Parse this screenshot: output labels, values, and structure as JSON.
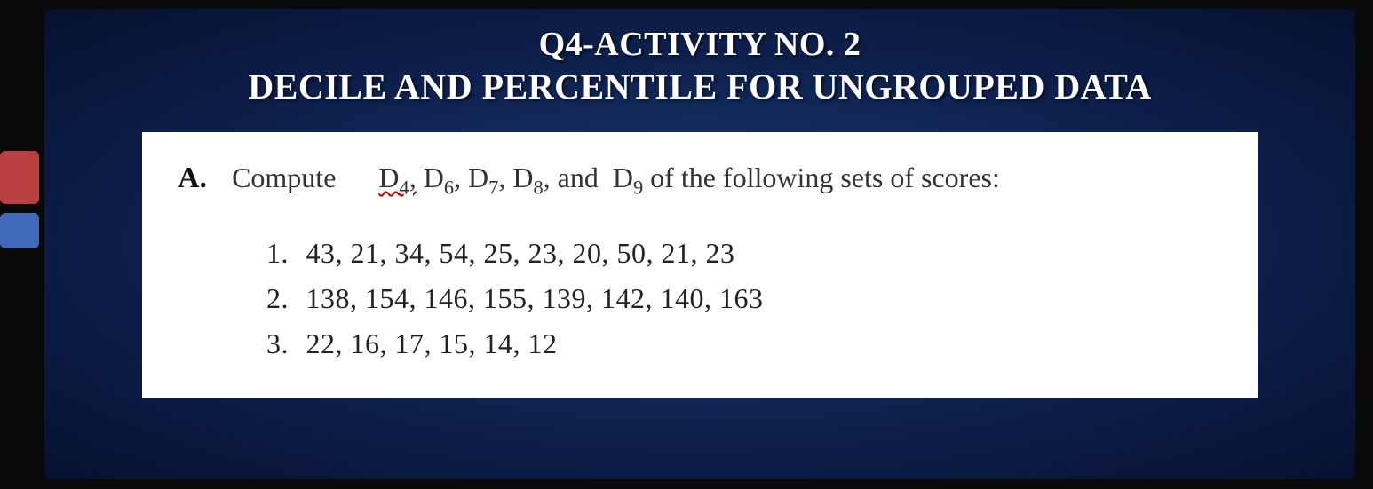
{
  "heading": {
    "line1": "Q4-ACTIVITY NO. 2",
    "line2": "DECILE AND PERCENTILE FOR UNGROUPED DATA"
  },
  "instruction": {
    "part_label": "A.",
    "verb": "Compute",
    "deciles_html": "D4, D6, D7, D8, and D9",
    "deciles": [
      "D4",
      "D6",
      "D7",
      "D8",
      "D9"
    ],
    "suffix": "of the following sets of scores:"
  },
  "datasets": [
    {
      "n": "1.",
      "values": "43,  21,  34,  54,  25,  23,  20,  50,  21,  23"
    },
    {
      "n": "2.",
      "values": "138,  154,  146,  155,  139,  142,  140,  163"
    },
    {
      "n": "3.",
      "values": "22,   16,   17,   15,   14,   12"
    }
  ],
  "style": {
    "slide_bg_center": "#1a3a7a",
    "slide_bg_edge": "#061030",
    "heading_color": "#ffffff",
    "heading_fontsize_line1": 38,
    "heading_fontsize_line2": 40,
    "content_bg": "#ffffff",
    "content_text_color": "#222222",
    "instruction_fontsize": 32,
    "data_fontsize": 32,
    "wavy_underline_color": "#c00000",
    "font_family": "Georgia, Times New Roman, serif"
  }
}
